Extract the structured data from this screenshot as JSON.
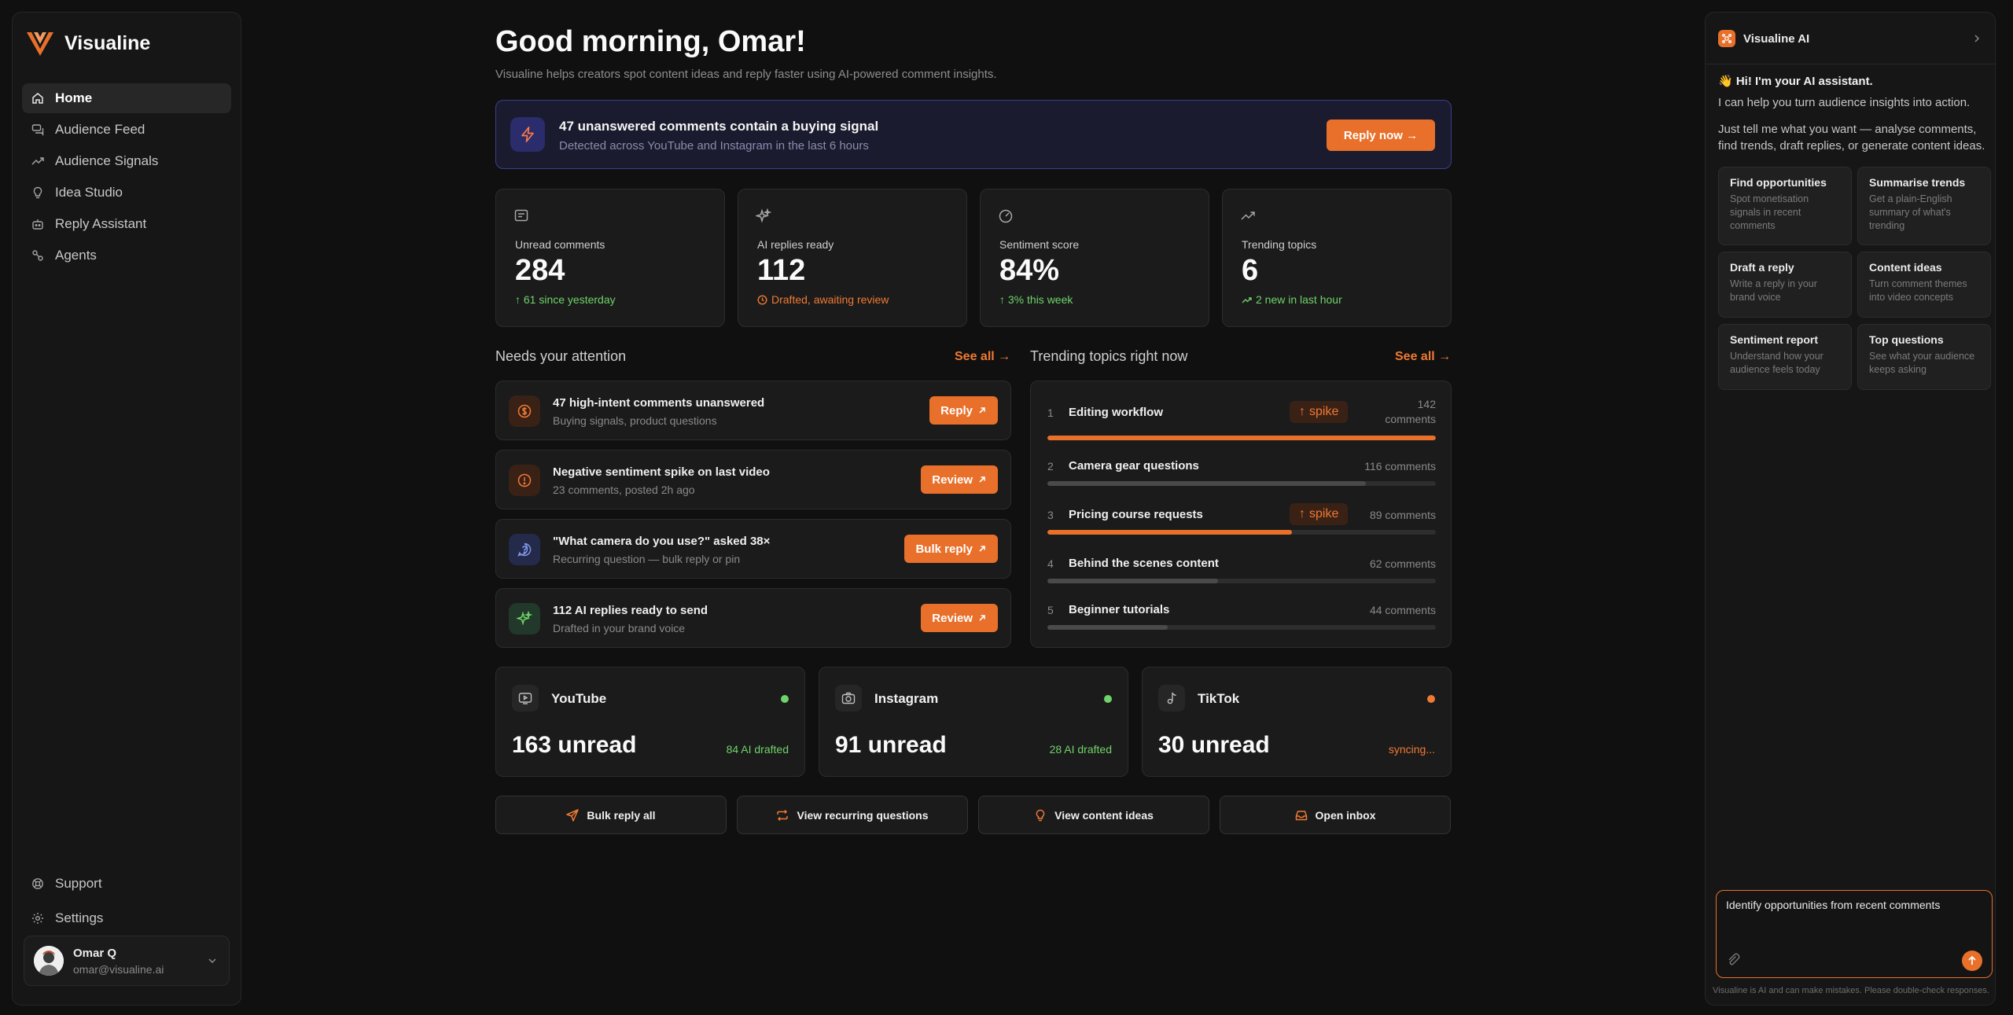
{
  "colors": {
    "accent": "#e8702a",
    "positive": "#6fd36a",
    "background": "#101010",
    "card": "#1b1b1b",
    "alert_border": "#3b3f8f"
  },
  "sidebar": {
    "brand": "Visualine",
    "items": [
      {
        "label": "Home",
        "icon": "home-icon",
        "active": true
      },
      {
        "label": "Audience Feed",
        "icon": "comments-icon"
      },
      {
        "label": "Audience Signals",
        "icon": "trend-icon"
      },
      {
        "label": "Idea Studio",
        "icon": "lightbulb-icon"
      },
      {
        "label": "Reply Assistant",
        "icon": "bot-icon"
      },
      {
        "label": "Agents",
        "icon": "agents-icon"
      }
    ],
    "support": "Support",
    "settings": "Settings",
    "user": {
      "name": "Omar Q",
      "email": "omar@visualine.ai"
    }
  },
  "main": {
    "greeting": "Good morning, Omar!",
    "subtitle": "Visualine helps creators spot content ideas and reply faster using AI-powered comment insights.",
    "alert": {
      "title": "47 unanswered comments contain a buying signal",
      "subtitle": "Detected across YouTube and Instagram in the last 6 hours",
      "button": "Reply now →"
    },
    "stats": [
      {
        "label": "Unread comments",
        "value": "284",
        "note": "↑ 61 since yesterday",
        "tone": "green",
        "icon": "message-icon"
      },
      {
        "label": "AI replies ready",
        "value": "112",
        "note": "Drafted, awaiting review",
        "tone": "orange",
        "icon": "sparkles-icon"
      },
      {
        "label": "Sentiment score",
        "value": "84%",
        "note": "↑ 3% this week",
        "tone": "green",
        "icon": "gauge-icon"
      },
      {
        "label": "Trending topics",
        "value": "6",
        "note": "2 new in last hour",
        "tone": "green",
        "icon": "trending-icon"
      }
    ],
    "attention": {
      "title": "Needs your attention",
      "see_all": "See all →",
      "items": [
        {
          "title": "47 high-intent comments unanswered",
          "subtitle": "Buying signals, product questions",
          "button": "Reply",
          "icon": "dollar-icon"
        },
        {
          "title": "Negative sentiment spike on last video",
          "subtitle": "23 comments, posted 2h ago",
          "button": "Review",
          "icon": "alert-circle-icon"
        },
        {
          "title": "\"What camera do you use?\" asked 38×",
          "subtitle": "Recurring question — bulk reply or pin",
          "button": "Bulk reply",
          "icon": "question-icon"
        },
        {
          "title": "112 AI replies ready to send",
          "subtitle": "Drafted in your brand voice",
          "button": "Review",
          "icon": "sparkles-icon"
        }
      ]
    },
    "trending": {
      "title": "Trending topics right now",
      "see_all": "See all →",
      "topics": [
        {
          "rank": "1",
          "name": "Editing workflow",
          "count": "142 comments",
          "spike": "spike",
          "fraction": 1.0
        },
        {
          "rank": "2",
          "name": "Camera gear questions",
          "count": "116 comments",
          "spike": "",
          "fraction": 0.82
        },
        {
          "rank": "3",
          "name": "Pricing course requests",
          "count": "89 comments",
          "spike": "spike",
          "fraction": 0.63
        },
        {
          "rank": "4",
          "name": "Behind the scenes content",
          "count": "62 comments",
          "spike": "",
          "fraction": 0.44
        },
        {
          "rank": "5",
          "name": "Beginner tutorials",
          "count": "44 comments",
          "spike": "",
          "fraction": 0.31
        }
      ]
    },
    "platforms": [
      {
        "name": "YouTube",
        "unread": "163 unread",
        "note": "84 AI drafted",
        "status": "green",
        "icon": "video-icon"
      },
      {
        "name": "Instagram",
        "unread": "91 unread",
        "note": "28 AI drafted",
        "status": "green",
        "icon": "camera-icon"
      },
      {
        "name": "TikTok",
        "unread": "30 unread",
        "note": "syncing...",
        "status": "orange",
        "icon": "music-note-icon"
      }
    ],
    "actions": [
      {
        "label": "Bulk reply all",
        "icon": "send-icon"
      },
      {
        "label": "View recurring questions",
        "icon": "repeat-icon"
      },
      {
        "label": "View content ideas",
        "icon": "lightbulb-icon"
      },
      {
        "label": "Open inbox",
        "icon": "inbox-icon"
      }
    ]
  },
  "ai_panel": {
    "title": "Visualine AI",
    "greeting": "👋 Hi! I'm your AI assistant.",
    "intro": "I can help you turn audience insights into action.",
    "prompt": "Just tell me what you want — analyse comments, find trends, draft replies, or generate content ideas.",
    "cards": [
      {
        "title": "Find opportunities",
        "desc": "Spot monetisation signals in recent comments"
      },
      {
        "title": "Summarise trends",
        "desc": "Get a plain-English summary of what's trending"
      },
      {
        "title": "Draft a reply",
        "desc": "Write a reply in your brand voice"
      },
      {
        "title": "Content ideas",
        "desc": "Turn comment themes into video concepts"
      },
      {
        "title": "Sentiment report",
        "desc": "Understand how your audience feels today"
      },
      {
        "title": "Top questions",
        "desc": "See what your audience keeps asking"
      }
    ],
    "input_value": "Identify opportunities from recent comments",
    "footer": "Visualine is AI and can make mistakes. Please double-check responses."
  }
}
